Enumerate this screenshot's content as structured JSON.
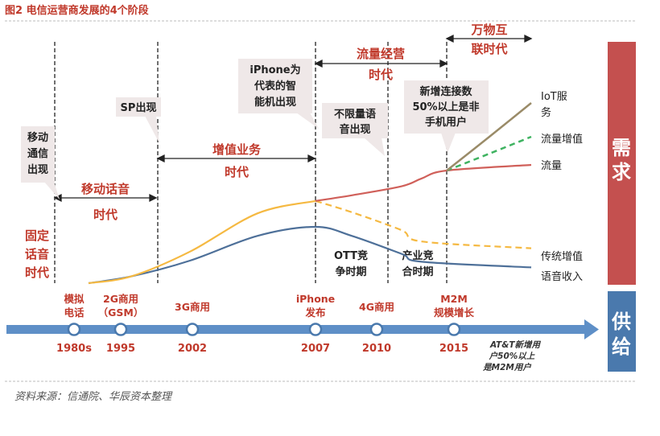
{
  "figure_title": "图2 电信运营商发展的4个阶段",
  "source_note": "资料来源：信通院、华辰资本整理",
  "colors": {
    "accent_red": "#c0392b",
    "demand_bar": "#c4504f",
    "supply_bar": "#4a79ad",
    "voice_line": "#4e7099",
    "legacy_line": "#f5b942",
    "traffic_line": "#d0605a",
    "traffic_value_line": "#3fb361",
    "iot_line": "#9a8b68",
    "callout_fill": "#efe8e8",
    "timeline_arrow": "#5e8fc7"
  },
  "side_labels": {
    "demand": "需求",
    "supply": "供给"
  },
  "phase_labels": {
    "fixed_voice": [
      "固定",
      "话音",
      "时代"
    ],
    "mobile_voice": [
      "移动话音",
      "时代"
    ],
    "value_added": [
      "增值业务",
      "时代"
    ],
    "traffic_ops": [
      "流量经营",
      "时代"
    ],
    "iot": [
      "万物互",
      "联时代"
    ]
  },
  "callouts": {
    "mobile_comm": [
      "移动",
      "通信",
      "出现"
    ],
    "sp": [
      "SP出现"
    ],
    "iphone_phone": [
      "iPhone为",
      "代表的智",
      "能机出现"
    ],
    "unlimited": [
      "不限量语",
      "音出现"
    ],
    "new_connections": [
      "新增连接数",
      "50%以上是非",
      "手机用户"
    ]
  },
  "inside_labels": {
    "ott": [
      "OTT竞",
      "争时期"
    ],
    "industry": [
      "产业竞",
      "合时期"
    ]
  },
  "chart_data": {
    "type": "line",
    "xlabel": "",
    "ylabel": "",
    "note": "conceptual curves without a numeric axis; x positions follow the timeline years",
    "series": [
      {
        "name": "语音收入",
        "color": "#4e7099",
        "points": [
          [
            1995,
            0.0
          ],
          [
            2000,
            0.06
          ],
          [
            2003,
            0.2
          ],
          [
            2005,
            0.42
          ],
          [
            2007,
            0.5
          ],
          [
            2009,
            0.42
          ],
          [
            2011,
            0.26
          ],
          [
            2013,
            0.19
          ],
          [
            2017,
            0.14
          ]
        ]
      },
      {
        "name": "传统增值",
        "color": "#f5b942",
        "points": [
          [
            1995,
            0.0
          ],
          [
            2000,
            0.06
          ],
          [
            2003,
            0.28
          ],
          [
            2005,
            0.62
          ],
          [
            2007,
            0.73
          ],
          [
            2009,
            0.63
          ],
          [
            2011,
            0.47
          ],
          [
            2013,
            0.37
          ],
          [
            2017,
            0.31
          ]
        ]
      },
      {
        "name": "流量",
        "color": "#d0605a",
        "points": [
          [
            2007,
            0.73
          ],
          [
            2009,
            0.78
          ],
          [
            2011,
            0.86
          ],
          [
            2013,
            0.93
          ],
          [
            2015,
            1.0
          ],
          [
            2017,
            1.05
          ]
        ]
      },
      {
        "name": "流量增值",
        "color": "#3fb361",
        "points": [
          [
            2015,
            1.0
          ],
          [
            2016,
            1.15
          ],
          [
            2017,
            1.3
          ]
        ]
      },
      {
        "name": "IoT服务",
        "color": "#9a8b68",
        "points": [
          [
            2015,
            1.0
          ],
          [
            2016,
            1.3
          ],
          [
            2017,
            1.6
          ]
        ]
      }
    ]
  },
  "timeline": {
    "events": [
      {
        "year": "1980s",
        "label": [
          "模拟",
          "电话"
        ]
      },
      {
        "year": "1995",
        "label": [
          "2G商用",
          "（GSM）"
        ]
      },
      {
        "year": "2002",
        "label": [
          "3G商用"
        ]
      },
      {
        "year": "2007",
        "label": [
          "iPhone",
          "发布"
        ]
      },
      {
        "year": "2010",
        "label": [
          "4G商用"
        ]
      },
      {
        "year": "2015",
        "label": [
          "M2M",
          "规模增长"
        ]
      }
    ],
    "note": [
      "AT&T新增用",
      "户50%以上",
      "是M2M用户"
    ]
  }
}
